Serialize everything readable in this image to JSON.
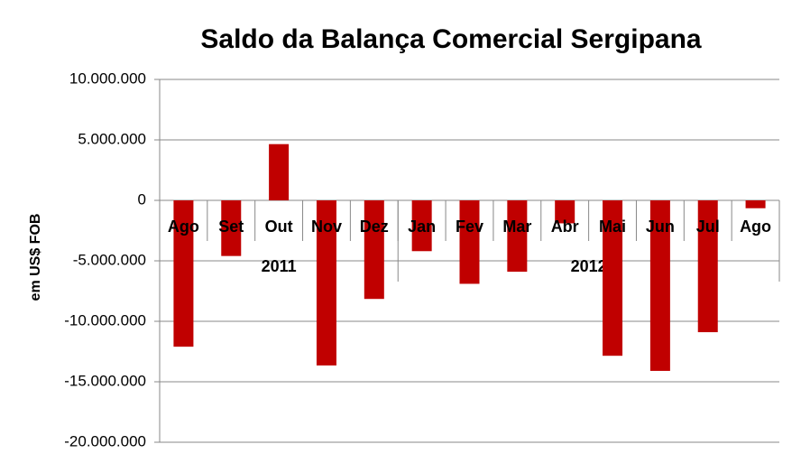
{
  "chart_data": {
    "type": "bar",
    "title": "Saldo da Balança Comercial Sergipana",
    "y_label": "em US$ FOB",
    "categories": [
      "Ago",
      "Set",
      "Out",
      "Nov",
      "Dez",
      "Jan",
      "Fev",
      "Mar",
      "Abr",
      "Mai",
      "Jun",
      "Jul",
      "Ago"
    ],
    "category_groups": [
      {
        "label": "2011",
        "count": 5
      },
      {
        "label": "2012",
        "count": 8
      }
    ],
    "values": [
      -12100000,
      -4600000,
      4650000,
      -13650000,
      -8150000,
      -4200000,
      -6900000,
      -5900000,
      -1900000,
      -12850000,
      -14100000,
      -10900000,
      -650000
    ],
    "color": "#c00000",
    "ylim": [
      -20000000,
      10000000
    ],
    "yticks": [
      {
        "value": -20000000,
        "label": "-20.000.000"
      },
      {
        "value": -15000000,
        "label": "-15.000.000"
      },
      {
        "value": -10000000,
        "label": "-10.000.000"
      },
      {
        "value": -5000000,
        "label": "-5.000.000"
      },
      0,
      {
        "value": 5000000,
        "label": "5.000.000"
      },
      {
        "value": 10000000,
        "label": "10.000.000"
      }
    ],
    "grid": true
  }
}
